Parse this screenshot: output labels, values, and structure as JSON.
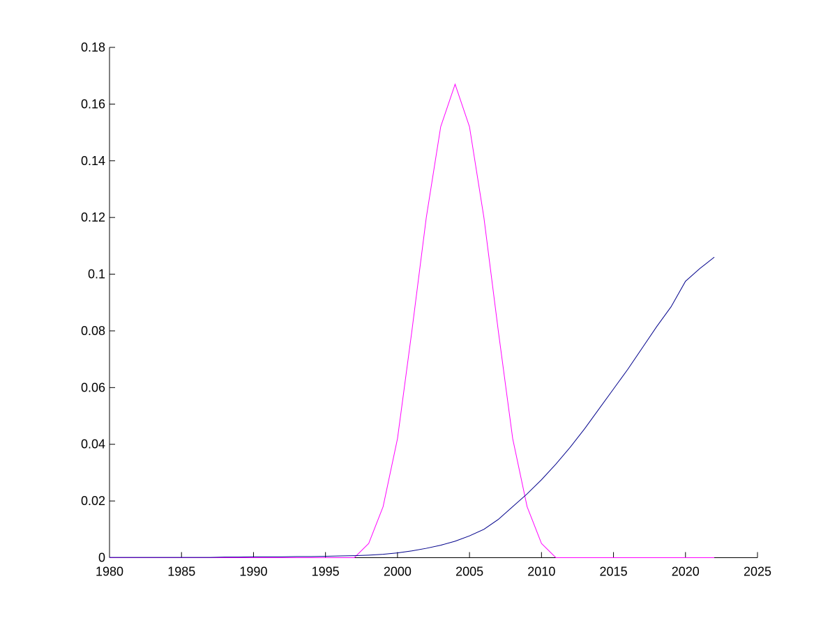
{
  "chart_data": {
    "type": "line",
    "x": [
      1980,
      1981,
      1982,
      1983,
      1984,
      1985,
      1986,
      1987,
      1988,
      1989,
      1990,
      1991,
      1992,
      1993,
      1994,
      1995,
      1996,
      1997,
      1998,
      1999,
      2000,
      2001,
      2002,
      2003,
      2004,
      2005,
      2006,
      2007,
      2008,
      2009,
      2010,
      2011,
      2012,
      2013,
      2014,
      2015,
      2016,
      2017,
      2018,
      2019,
      2020,
      2021,
      2022
    ],
    "series": [
      {
        "color": "#ff00ff",
        "values": [
          0,
          0,
          0,
          0,
          0,
          0,
          0,
          0,
          0,
          0,
          0,
          0,
          0,
          0,
          0,
          0,
          0,
          0,
          0.005,
          0.018,
          0.042,
          0.08,
          0.12,
          0.152,
          0.167,
          0.152,
          0.12,
          0.08,
          0.042,
          0.018,
          0.005,
          0,
          0,
          0,
          0,
          0,
          0,
          0,
          0,
          0,
          0,
          0,
          0
        ]
      },
      {
        "color": "#00008b",
        "values": [
          0.0001,
          0.0001,
          0.0001,
          0.0001,
          0.0001,
          0.0001,
          0.0001,
          0.0001,
          0.0002,
          0.0002,
          0.0003,
          0.0003,
          0.0003,
          0.0004,
          0.0004,
          0.0005,
          0.0006,
          0.0007,
          0.0009,
          0.0012,
          0.0017,
          0.0024,
          0.0033,
          0.0044,
          0.0058,
          0.0077,
          0.01,
          0.0135,
          0.018,
          0.0225,
          0.0275,
          0.033,
          0.039,
          0.0455,
          0.0525,
          0.0595,
          0.0665,
          0.074,
          0.0815,
          0.0885,
          0.0975,
          0.102,
          0.106
        ]
      }
    ],
    "xlim": [
      1980,
      2025
    ],
    "xticks": [
      1980,
      1985,
      1990,
      1995,
      2000,
      2005,
      2010,
      2015,
      2020,
      2025
    ],
    "ylim": [
      0,
      0.18
    ],
    "yticks": [
      0,
      0.02,
      0.04,
      0.06,
      0.08,
      0.1,
      0.12,
      0.14,
      0.16,
      0.18
    ]
  }
}
